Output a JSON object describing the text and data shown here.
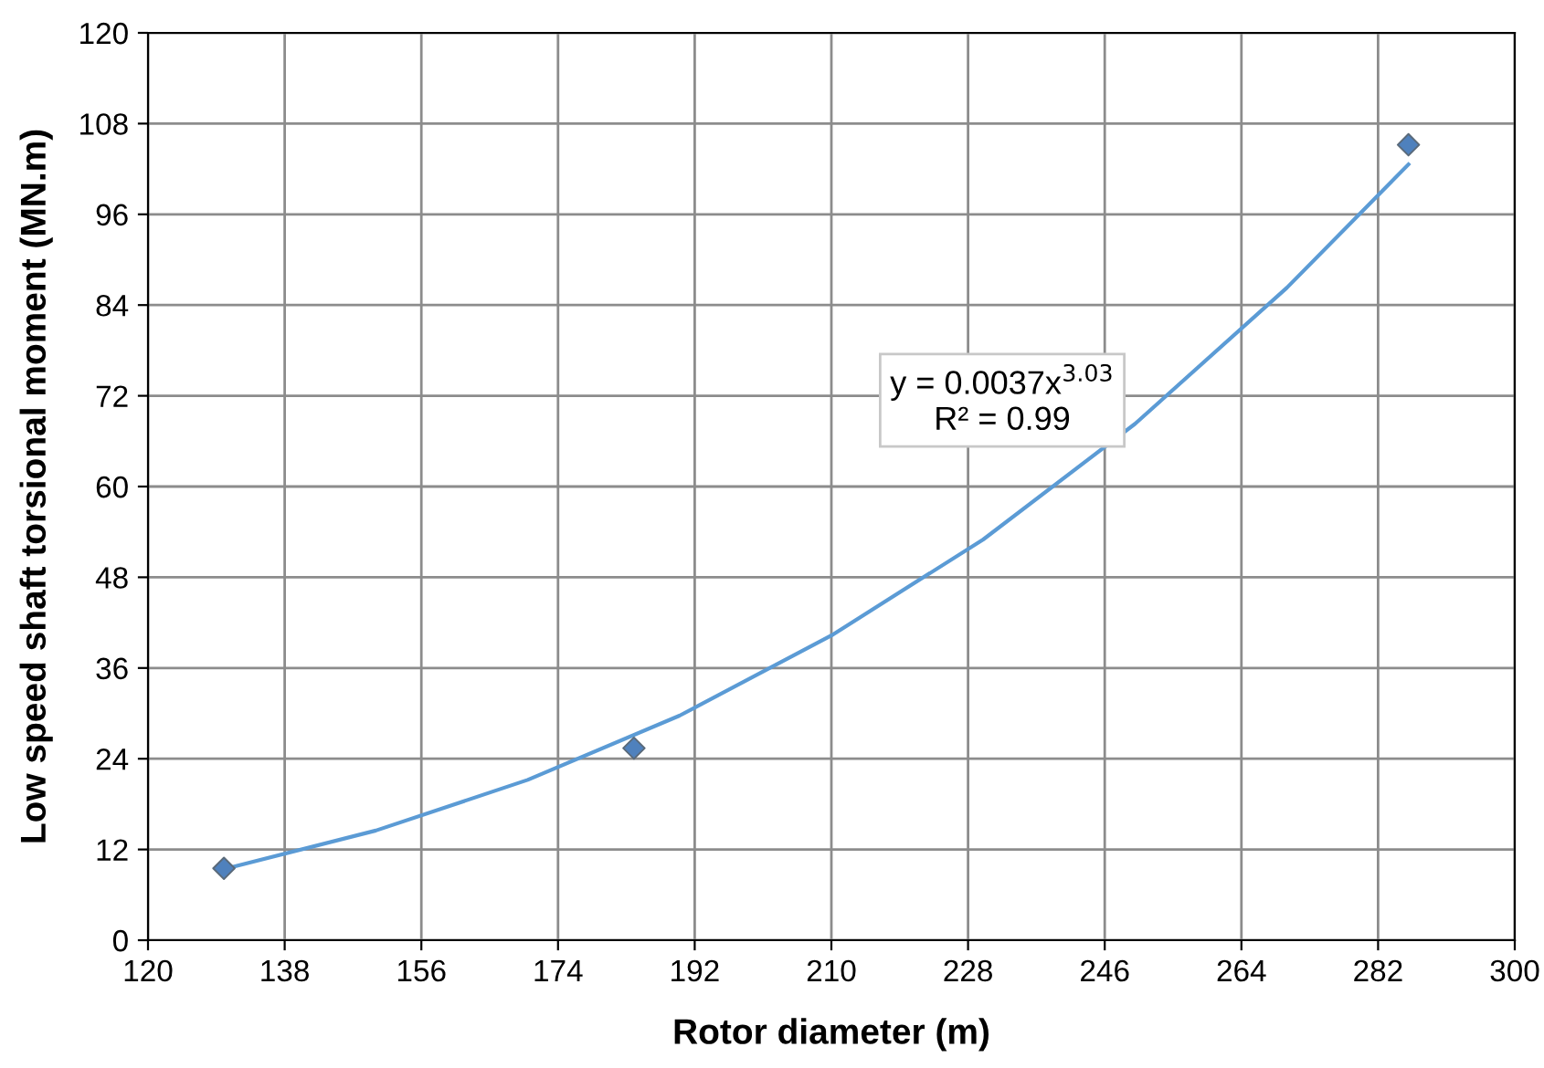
{
  "chart_data": {
    "type": "scatter",
    "xlabel": "Rotor diameter (m)",
    "ylabel": "Low speed shaft torsional moment (MN.m)",
    "series": [
      {
        "color": "#4f81bd",
        "marker": "diamond",
        "x": [
          130,
          184,
          286
        ],
        "values": [
          9.5,
          25.4,
          105.2
        ]
      },
      {
        "type": "line",
        "color": "#5b9bd5",
        "marker": "none",
        "x": [
          130,
          150,
          170,
          190,
          210,
          230,
          250,
          270,
          286
        ],
        "values": [
          9.4,
          14.5,
          21.2,
          29.7,
          40.3,
          53.0,
          68.3,
          86.3,
          102.6
        ]
      }
    ],
    "annotations": [
      "y = 0.0037x$^{3.03}$\nR² = 0.99"
    ],
    "xlim": [
      120,
      300
    ],
    "xticks": [
      120,
      138,
      156,
      174,
      192,
      210,
      228,
      246,
      264,
      282,
      300
    ],
    "ylim": [
      0,
      120
    ],
    "yticks": [
      0,
      12,
      24,
      36,
      48,
      60,
      72,
      84,
      96,
      108,
      120
    ],
    "grid": true,
    "legend": false
  }
}
